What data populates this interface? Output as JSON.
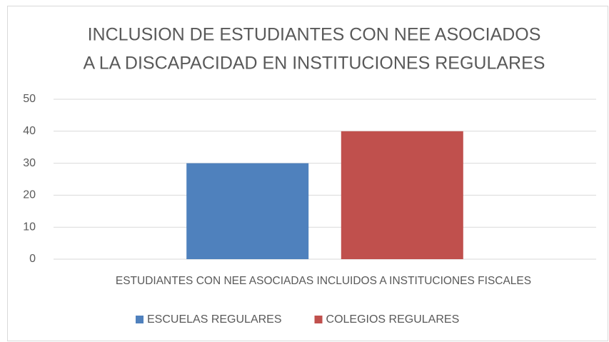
{
  "chart_data": {
    "type": "bar",
    "title": [
      "INCLUSION DE ESTUDIANTES CON NEE ASOCIADOS",
      "A LA DISCAPACIDAD EN INSTITUCIONES REGULARES"
    ],
    "categories": [
      "ESTUDIANTES CON NEE ASOCIADAS INCLUIDOS A INSTITUCIONES FISCALES"
    ],
    "series": [
      {
        "name": "ESCUELAS REGULARES",
        "color": "#4f81bd",
        "values": [
          30
        ]
      },
      {
        "name": "COLEGIOS REGULARES",
        "color": "#c0504d",
        "values": [
          40
        ]
      }
    ],
    "ylim": [
      0,
      50
    ],
    "yticks": [
      0,
      10,
      20,
      30,
      40,
      50
    ],
    "grid": true,
    "legend": "bottom"
  }
}
